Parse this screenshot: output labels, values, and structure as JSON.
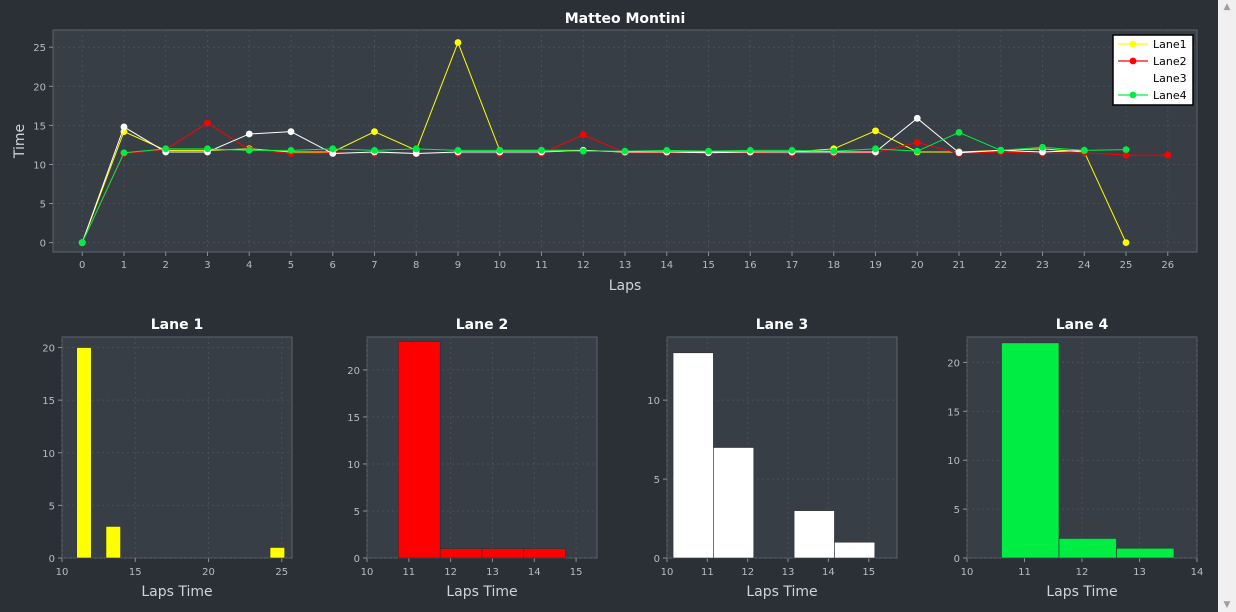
{
  "colors": {
    "background": "#2b3036",
    "plot_background": "#383e46",
    "grid": "#4a5059",
    "lane1": "#ffff00",
    "lane2": "#ff0000",
    "lane3": "#ffffff",
    "lane4": "#00ee44"
  },
  "chart_data": [
    {
      "type": "line",
      "title": "Matteo Montini",
      "xlabel": "Laps",
      "ylabel": "Time",
      "xlim": [
        -0.7,
        26.7
      ],
      "ylim": [
        -1.2,
        27.2
      ],
      "x_ticks": [
        0,
        1,
        2,
        3,
        4,
        5,
        6,
        7,
        8,
        9,
        10,
        11,
        12,
        13,
        14,
        15,
        16,
        17,
        18,
        19,
        20,
        21,
        22,
        23,
        24,
        25,
        26
      ],
      "y_ticks": [
        0,
        5,
        10,
        15,
        20,
        25
      ],
      "grid": true,
      "legend_position": "top-right",
      "series": [
        {
          "name": "Lane1",
          "x": [
            0,
            1,
            2,
            3,
            4,
            5,
            6,
            7,
            8,
            9,
            10,
            11,
            12,
            13,
            14,
            15,
            16,
            17,
            18,
            19,
            20,
            21,
            22,
            23,
            24,
            25
          ],
          "values": [
            0,
            14.2,
            11.8,
            11.8,
            12.0,
            11.6,
            11.6,
            14.2,
            11.8,
            25.6,
            11.8,
            11.8,
            11.8,
            11.6,
            11.6,
            11.6,
            11.6,
            11.6,
            12.0,
            14.3,
            11.6,
            11.6,
            11.8,
            12.0,
            11.6,
            0
          ]
        },
        {
          "name": "Lane2",
          "x": [
            0,
            1,
            2,
            3,
            4,
            5,
            6,
            7,
            8,
            9,
            10,
            11,
            12,
            13,
            14,
            15,
            16,
            17,
            18,
            19,
            20,
            21,
            22,
            23,
            24,
            25,
            26
          ],
          "values": [
            0,
            11.4,
            11.9,
            15.3,
            11.9,
            11.4,
            11.5,
            11.4,
            11.4,
            11.4,
            11.4,
            11.4,
            13.8,
            11.5,
            11.5,
            11.5,
            11.5,
            11.4,
            11.4,
            11.5,
            12.8,
            11.4,
            11.6,
            11.4,
            11.5,
            11.2,
            11.2
          ]
        },
        {
          "name": "Lane3",
          "x": [
            0,
            1,
            2,
            3,
            4,
            5,
            6,
            7,
            8,
            9,
            10,
            11,
            12,
            13,
            14,
            15,
            16,
            17,
            18,
            19,
            20,
            21,
            22,
            23,
            24
          ],
          "values": [
            0,
            14.8,
            11.6,
            11.6,
            13.9,
            14.2,
            11.4,
            11.6,
            11.4,
            11.6,
            11.6,
            11.6,
            11.8,
            11.6,
            11.6,
            11.5,
            11.6,
            11.6,
            11.6,
            11.6,
            15.9,
            11.5,
            11.8,
            11.6,
            11.8
          ]
        },
        {
          "name": "Lane4",
          "x": [
            0,
            1,
            2,
            3,
            4,
            5,
            6,
            7,
            8,
            9,
            10,
            11,
            12,
            13,
            14,
            15,
            16,
            17,
            18,
            19,
            20,
            21,
            22,
            23,
            24,
            25
          ],
          "values": [
            0,
            11.5,
            12.0,
            12.0,
            11.8,
            11.8,
            12.0,
            11.8,
            12.0,
            11.8,
            11.8,
            11.8,
            11.7,
            11.7,
            11.8,
            11.7,
            11.8,
            11.8,
            11.7,
            12.0,
            11.7,
            14.1,
            11.8,
            12.2,
            11.8,
            11.9
          ]
        }
      ]
    },
    {
      "type": "bar",
      "title": "Lane 1",
      "xlabel": "Laps Time",
      "xlim": [
        10,
        25.7
      ],
      "ylim": [
        0,
        21
      ],
      "x_ticks": [
        10,
        15,
        20,
        25
      ],
      "y_ticks": [
        0,
        5,
        10,
        15,
        20
      ],
      "color": "lane1",
      "bins": [
        {
          "start": 11,
          "end": 12,
          "value": 20
        },
        {
          "start": 13,
          "end": 14,
          "value": 3
        },
        {
          "start": 24.2,
          "end": 25.2,
          "value": 1
        }
      ]
    },
    {
      "type": "bar",
      "title": "Lane 2",
      "xlabel": "Laps Time",
      "xlim": [
        10,
        15.5
      ],
      "ylim": [
        0,
        23.5
      ],
      "x_ticks": [
        10,
        11,
        12,
        13,
        14,
        15
      ],
      "y_ticks": [
        0,
        5,
        10,
        15,
        20
      ],
      "color": "lane2",
      "bins": [
        {
          "start": 10.75,
          "end": 11.75,
          "value": 23
        },
        {
          "start": 11.75,
          "end": 12.75,
          "value": 1
        },
        {
          "start": 12.75,
          "end": 13.75,
          "value": 1
        },
        {
          "start": 13.75,
          "end": 14.75,
          "value": 1
        }
      ]
    },
    {
      "type": "bar",
      "title": "Lane 3",
      "xlabel": "Laps Time",
      "xlim": [
        10,
        15.7
      ],
      "ylim": [
        0,
        14
      ],
      "x_ticks": [
        10,
        11,
        12,
        13,
        14,
        15
      ],
      "y_ticks": [
        0,
        5,
        10
      ],
      "color": "lane3",
      "bins": [
        {
          "start": 10.15,
          "end": 11.15,
          "value": 13
        },
        {
          "start": 11.15,
          "end": 12.15,
          "value": 7
        },
        {
          "start": 13.15,
          "end": 14.15,
          "value": 3
        },
        {
          "start": 14.15,
          "end": 15.15,
          "value": 1
        }
      ]
    },
    {
      "type": "bar",
      "title": "Lane 4",
      "xlabel": "Laps Time",
      "xlim": [
        10,
        14
      ],
      "ylim": [
        0,
        22.6
      ],
      "x_ticks": [
        10,
        11,
        12,
        13,
        14
      ],
      "y_ticks": [
        0,
        5,
        10,
        15,
        20
      ],
      "color": "lane4",
      "bins": [
        {
          "start": 10.6,
          "end": 11.6,
          "value": 22
        },
        {
          "start": 11.6,
          "end": 12.6,
          "value": 2
        },
        {
          "start": 12.6,
          "end": 13.6,
          "value": 1
        }
      ]
    }
  ]
}
